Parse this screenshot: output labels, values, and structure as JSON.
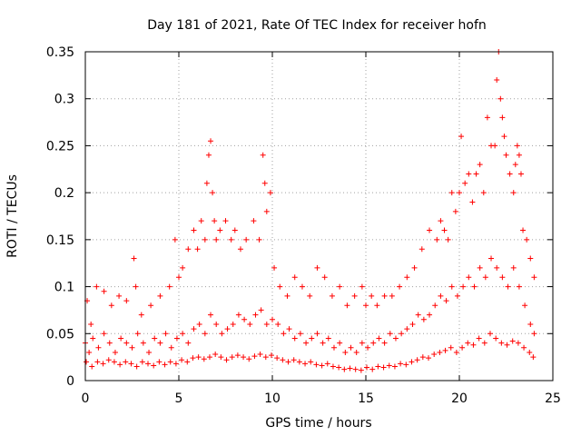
{
  "chart_data": {
    "type": "scatter",
    "title": "Day 181 of 2021, Rate Of TEC Index for receiver hofn",
    "xlabel": "GPS time / hours",
    "ylabel": "ROTI / TECUs",
    "xlim": [
      0,
      25
    ],
    "ylim": [
      0,
      0.35
    ],
    "x_ticks": [
      0,
      5,
      10,
      15,
      20,
      25
    ],
    "y_ticks": [
      0,
      0.05,
      0.1,
      0.15,
      0.2,
      0.25,
      0.3,
      0.35
    ],
    "x_tick_labels": [
      "0",
      "5",
      "10",
      "15",
      "20",
      "25"
    ],
    "y_tick_labels": [
      "0",
      "0.05",
      "0.1",
      "0.15",
      "0.2",
      "0.25",
      "0.3",
      "0.35"
    ],
    "grid": true,
    "marker": "plus",
    "color": "#ff0000",
    "series": [
      {
        "x": [
          0.1,
          0.3,
          0.6,
          1.0,
          1.4,
          1.8,
          2.2,
          2.6,
          2.7,
          3.0,
          3.5,
          4.0,
          4.5,
          4.8,
          5.0,
          5.2,
          5.5,
          5.8,
          6.0,
          6.2,
          6.4,
          6.5,
          6.6,
          6.7,
          6.8,
          6.9,
          7.0,
          7.2,
          7.5,
          7.8,
          8.0,
          8.3,
          8.6,
          9.0,
          9.3,
          9.5,
          9.6,
          9.7,
          9.9,
          10.1,
          10.4,
          10.8,
          11.2,
          11.6,
          12.0,
          12.4,
          12.8,
          13.2,
          13.6,
          14.0,
          14.4,
          14.8,
          15.0,
          15.3,
          15.6,
          16.0,
          16.4,
          16.8,
          17.2,
          17.6,
          18.0,
          18.4,
          18.8,
          19.0,
          19.2,
          19.4,
          19.6,
          19.8,
          20.0,
          20.1,
          20.3,
          20.5,
          20.7,
          20.9,
          21.1,
          21.3,
          21.5,
          21.7,
          21.9,
          22.0,
          22.1,
          22.2,
          22.3,
          22.4,
          22.5,
          22.7,
          22.9,
          23.0,
          23.1,
          23.2,
          23.3,
          23.4,
          23.6,
          23.8,
          24.0
        ],
        "y": [
          0.085,
          0.06,
          0.1,
          0.095,
          0.08,
          0.09,
          0.085,
          0.13,
          0.1,
          0.07,
          0.08,
          0.09,
          0.1,
          0.15,
          0.11,
          0.12,
          0.14,
          0.16,
          0.14,
          0.17,
          0.15,
          0.21,
          0.24,
          0.255,
          0.2,
          0.17,
          0.15,
          0.16,
          0.17,
          0.15,
          0.16,
          0.14,
          0.15,
          0.17,
          0.15,
          0.24,
          0.21,
          0.18,
          0.2,
          0.12,
          0.1,
          0.09,
          0.11,
          0.1,
          0.09,
          0.12,
          0.11,
          0.09,
          0.1,
          0.08,
          0.09,
          0.1,
          0.08,
          0.09,
          0.08,
          0.09,
          0.09,
          0.1,
          0.11,
          0.12,
          0.14,
          0.16,
          0.15,
          0.17,
          0.16,
          0.15,
          0.2,
          0.18,
          0.2,
          0.26,
          0.21,
          0.22,
          0.19,
          0.22,
          0.23,
          0.2,
          0.28,
          0.25,
          0.25,
          0.32,
          0.35,
          0.3,
          0.28,
          0.26,
          0.24,
          0.22,
          0.2,
          0.23,
          0.25,
          0.24,
          0.22,
          0.16,
          0.15,
          0.13,
          0.11
        ]
      },
      {
        "x": [
          0.0,
          0.2,
          0.4,
          0.7,
          1.0,
          1.3,
          1.6,
          1.9,
          2.2,
          2.5,
          2.8,
          3.1,
          3.4,
          3.7,
          4.0,
          4.3,
          4.6,
          4.9,
          5.2,
          5.5,
          5.8,
          6.1,
          6.4,
          6.7,
          7.0,
          7.3,
          7.6,
          7.9,
          8.2,
          8.5,
          8.8,
          9.1,
          9.4,
          9.7,
          10.0,
          10.3,
          10.6,
          10.9,
          11.2,
          11.5,
          11.8,
          12.1,
          12.4,
          12.7,
          13.0,
          13.3,
          13.6,
          13.9,
          14.2,
          14.5,
          14.8,
          15.1,
          15.4,
          15.7,
          16.0,
          16.3,
          16.6,
          16.9,
          17.2,
          17.5,
          17.8,
          18.1,
          18.4,
          18.7,
          19.0,
          19.3,
          19.6,
          19.9,
          20.2,
          20.5,
          20.8,
          21.1,
          21.4,
          21.7,
          22.0,
          22.3,
          22.6,
          22.9,
          23.2,
          23.5,
          23.8,
          24.0
        ],
        "y": [
          0.04,
          0.03,
          0.045,
          0.035,
          0.05,
          0.04,
          0.03,
          0.045,
          0.04,
          0.035,
          0.05,
          0.04,
          0.03,
          0.045,
          0.04,
          0.05,
          0.035,
          0.045,
          0.05,
          0.04,
          0.055,
          0.06,
          0.05,
          0.07,
          0.06,
          0.05,
          0.055,
          0.06,
          0.07,
          0.065,
          0.06,
          0.07,
          0.075,
          0.06,
          0.065,
          0.06,
          0.05,
          0.055,
          0.045,
          0.05,
          0.04,
          0.045,
          0.05,
          0.04,
          0.045,
          0.035,
          0.04,
          0.03,
          0.035,
          0.03,
          0.04,
          0.035,
          0.04,
          0.045,
          0.04,
          0.05,
          0.045,
          0.05,
          0.055,
          0.06,
          0.07,
          0.065,
          0.07,
          0.08,
          0.09,
          0.085,
          0.1,
          0.09,
          0.1,
          0.11,
          0.1,
          0.12,
          0.11,
          0.13,
          0.12,
          0.11,
          0.1,
          0.12,
          0.1,
          0.08,
          0.06,
          0.05
        ]
      },
      {
        "x": [
          0.05,
          0.35,
          0.65,
          0.95,
          1.25,
          1.55,
          1.85,
          2.15,
          2.45,
          2.75,
          3.05,
          3.35,
          3.65,
          3.95,
          4.25,
          4.55,
          4.85,
          5.15,
          5.45,
          5.75,
          6.05,
          6.35,
          6.65,
          6.95,
          7.25,
          7.55,
          7.85,
          8.15,
          8.45,
          8.75,
          9.05,
          9.35,
          9.65,
          9.95,
          10.25,
          10.55,
          10.85,
          11.15,
          11.45,
          11.75,
          12.05,
          12.35,
          12.65,
          12.95,
          13.25,
          13.55,
          13.85,
          14.15,
          14.45,
          14.75,
          15.05,
          15.35,
          15.65,
          15.95,
          16.25,
          16.55,
          16.85,
          17.15,
          17.45,
          17.75,
          18.05,
          18.35,
          18.65,
          18.95,
          19.25,
          19.55,
          19.85,
          20.15,
          20.45,
          20.75,
          21.05,
          21.35,
          21.65,
          21.95,
          22.25,
          22.55,
          22.85,
          23.15,
          23.45,
          23.75,
          23.95
        ],
        "y": [
          0.02,
          0.015,
          0.02,
          0.018,
          0.022,
          0.02,
          0.017,
          0.02,
          0.018,
          0.015,
          0.02,
          0.018,
          0.016,
          0.02,
          0.017,
          0.02,
          0.018,
          0.022,
          0.02,
          0.024,
          0.025,
          0.023,
          0.025,
          0.028,
          0.025,
          0.022,
          0.025,
          0.027,
          0.025,
          0.023,
          0.026,
          0.028,
          0.025,
          0.027,
          0.024,
          0.022,
          0.02,
          0.022,
          0.02,
          0.018,
          0.02,
          0.017,
          0.016,
          0.018,
          0.015,
          0.014,
          0.012,
          0.013,
          0.012,
          0.011,
          0.014,
          0.012,
          0.015,
          0.014,
          0.016,
          0.015,
          0.018,
          0.017,
          0.02,
          0.022,
          0.025,
          0.024,
          0.028,
          0.03,
          0.032,
          0.035,
          0.03,
          0.035,
          0.04,
          0.038,
          0.045,
          0.04,
          0.05,
          0.045,
          0.04,
          0.038,
          0.042,
          0.04,
          0.035,
          0.03,
          0.025
        ]
      }
    ]
  }
}
